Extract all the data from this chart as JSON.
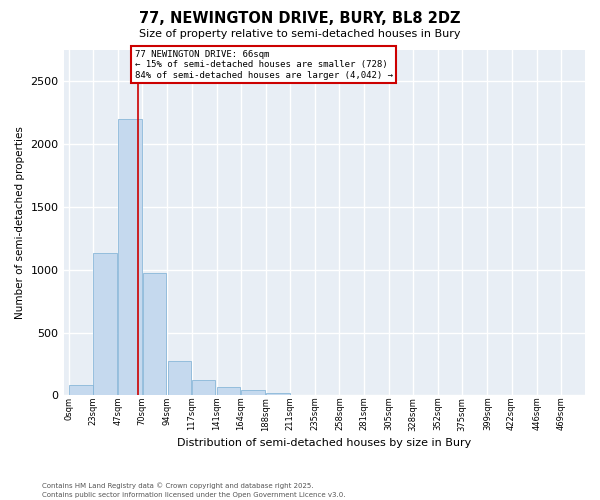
{
  "title": "77, NEWINGTON DRIVE, BURY, BL8 2DZ",
  "subtitle": "Size of property relative to semi-detached houses in Bury",
  "xlabel": "Distribution of semi-detached houses by size in Bury",
  "ylabel": "Number of semi-detached properties",
  "footnote1": "Contains HM Land Registry data © Crown copyright and database right 2025.",
  "footnote2": "Contains public sector information licensed under the Open Government Licence v3.0.",
  "annotation_title": "77 NEWINGTON DRIVE: 66sqm",
  "annotation_line1": "← 15% of semi-detached houses are smaller (728)",
  "annotation_line2": "84% of semi-detached houses are larger (4,042) →",
  "property_size": 66,
  "bar_color": "#c5d9ee",
  "bar_edge_color": "#7aaed4",
  "vline_color": "#cc0000",
  "annotation_box_edgecolor": "#cc0000",
  "bg_color": "#e8eef5",
  "grid_color": "#ffffff",
  "categories": [
    "0sqm",
    "23sqm",
    "47sqm",
    "70sqm",
    "94sqm",
    "117sqm",
    "141sqm",
    "164sqm",
    "188sqm",
    "211sqm",
    "235sqm",
    "258sqm",
    "281sqm",
    "305sqm",
    "328sqm",
    "352sqm",
    "375sqm",
    "399sqm",
    "422sqm",
    "446sqm",
    "469sqm"
  ],
  "bin_starts": [
    0,
    23,
    47,
    70,
    94,
    117,
    141,
    164,
    188,
    211,
    235,
    258,
    281,
    305,
    328,
    352,
    375,
    399,
    422,
    446,
    469
  ],
  "bin_width": 23,
  "values": [
    80,
    1130,
    2200,
    970,
    270,
    120,
    70,
    45,
    20,
    5,
    2,
    1,
    0,
    0,
    0,
    0,
    0,
    0,
    0,
    0,
    0
  ],
  "ylim": [
    0,
    2750
  ],
  "yticks": [
    0,
    500,
    1000,
    1500,
    2000,
    2500
  ],
  "xlim_min": -5,
  "xlim_max": 492
}
